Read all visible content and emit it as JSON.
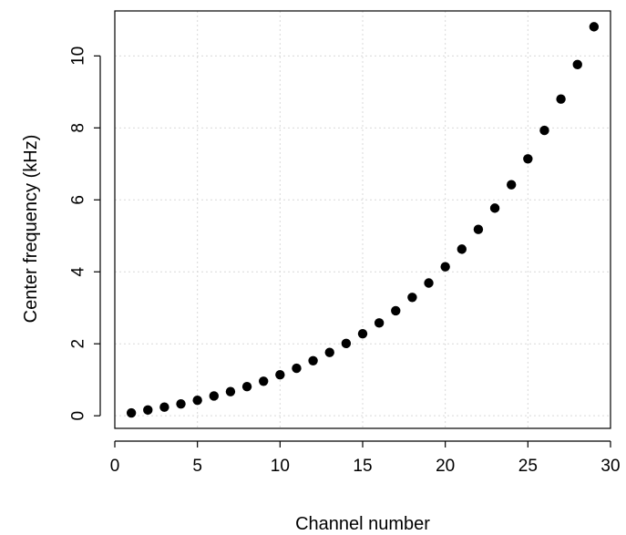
{
  "chart_data": {
    "type": "scatter",
    "title": "",
    "xlabel": "Channel number",
    "ylabel": "Center frequency (kHz)",
    "xlim": [
      0,
      30
    ],
    "ylim": [
      -0.35,
      11.25
    ],
    "xticks": [
      0,
      5,
      10,
      15,
      20,
      25,
      30
    ],
    "yticks": [
      0,
      2,
      4,
      6,
      8,
      10
    ],
    "grid": true,
    "legend": "none",
    "marker_color": "#000000",
    "series": [
      {
        "x": [
          1,
          2,
          3,
          4,
          5,
          6,
          7,
          8,
          9,
          10,
          11,
          12,
          13,
          14,
          15,
          16,
          17,
          18,
          19,
          20,
          21,
          22,
          23,
          24,
          25,
          26,
          27,
          28,
          29
        ],
        "y": [
          0.08,
          0.16,
          0.24,
          0.33,
          0.43,
          0.55,
          0.67,
          0.81,
          0.96,
          1.14,
          1.32,
          1.53,
          1.76,
          2.01,
          2.28,
          2.58,
          2.92,
          3.29,
          3.69,
          4.14,
          4.63,
          5.18,
          5.77,
          6.42,
          7.14,
          7.93,
          8.8,
          9.76,
          10.81
        ]
      }
    ]
  }
}
